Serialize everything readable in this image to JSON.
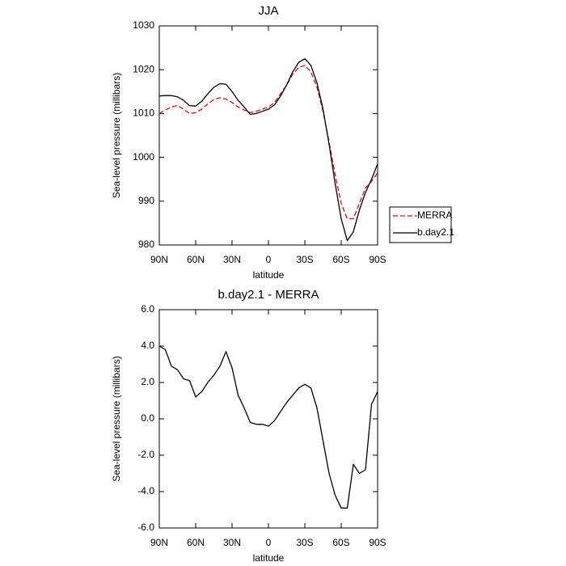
{
  "chart_data": [
    {
      "type": "line",
      "title": "JJA",
      "x_label": "latitude",
      "y_label": "Sea-level pressure (millibars)",
      "x": [
        90,
        85,
        80,
        75,
        70,
        65,
        60,
        55,
        50,
        45,
        40,
        35,
        30,
        25,
        20,
        15,
        10,
        5,
        0,
        -5,
        -10,
        -15,
        -20,
        -25,
        -30,
        -35,
        -40,
        -45,
        -50,
        -55,
        -60,
        -65,
        -70,
        -75,
        -80,
        -85,
        -90
      ],
      "xlim": [
        90,
        -90
      ],
      "xticks": [
        {
          "value": 90,
          "label": "90N"
        },
        {
          "value": 60,
          "label": "60N"
        },
        {
          "value": 30,
          "label": "30N"
        },
        0,
        {
          "value": -30,
          "label": "30S"
        },
        {
          "value": -60,
          "label": "60S"
        },
        {
          "value": -90,
          "label": "90S"
        }
      ],
      "ylim": [
        980,
        1030
      ],
      "yticks": [
        980,
        990,
        1000,
        1010,
        1020,
        1030
      ],
      "legend": "right",
      "series": [
        {
          "name": "MERRA",
          "color": "#ff0000",
          "dash": "dashed",
          "values": [
            1010,
            1010.8,
            1011.5,
            1011.8,
            1011,
            1010,
            1010.2,
            1011,
            1012.2,
            1013.2,
            1013.6,
            1013.3,
            1012.5,
            1011.5,
            1010.8,
            1010.2,
            1010.5,
            1011,
            1011.5,
            1012.5,
            1014.5,
            1016.5,
            1019,
            1020.5,
            1021,
            1019.5,
            1016,
            1010.5,
            1003.5,
            996,
            989.5,
            986,
            986,
            989.5,
            993,
            994.5,
            996.5
          ]
        },
        {
          "name": "b.day2.1",
          "color": "#000000",
          "dash": "solid",
          "values": [
            1014,
            1014.1,
            1014.1,
            1013.8,
            1013,
            1011.8,
            1011.7,
            1012.8,
            1014.5,
            1016,
            1016.8,
            1016.7,
            1015,
            1013,
            1011.5,
            1009.8,
            1010,
            1010.5,
            1011,
            1012,
            1014,
            1016.5,
            1019.5,
            1021.7,
            1022.5,
            1021,
            1017,
            1011,
            1003,
            994,
            986,
            981,
            983,
            988,
            992,
            995,
            998.5
          ]
        }
      ]
    },
    {
      "type": "line",
      "title": "b.day2.1 - MERRA",
      "x_label": "latitude",
      "y_label": "Sea-level pressure (millibars)",
      "x": [
        90,
        85,
        80,
        75,
        70,
        65,
        60,
        55,
        50,
        45,
        40,
        35,
        30,
        25,
        20,
        15,
        10,
        5,
        0,
        -5,
        -10,
        -15,
        -20,
        -25,
        -30,
        -35,
        -40,
        -45,
        -50,
        -55,
        -60,
        -65,
        -70,
        -75,
        -80,
        -85,
        -90
      ],
      "xlim": [
        90,
        -90
      ],
      "xticks": [
        {
          "value": 90,
          "label": "90N"
        },
        {
          "value": 60,
          "label": "60N"
        },
        {
          "value": 30,
          "label": "30N"
        },
        0,
        {
          "value": -30,
          "label": "30S"
        },
        {
          "value": -60,
          "label": "60S"
        },
        {
          "value": -90,
          "label": "90S"
        }
      ],
      "ylim": [
        -6,
        6
      ],
      "yticks": [
        {
          "value": -6,
          "label": "-6.0"
        },
        {
          "value": -4,
          "label": "-4.0"
        },
        {
          "value": -2,
          "label": "-2.0"
        },
        {
          "value": 0,
          "label": "0.0"
        },
        {
          "value": 2,
          "label": "2.0"
        },
        {
          "value": 4,
          "label": "4.0"
        },
        {
          "value": 6,
          "label": "6.0"
        }
      ],
      "series": [
        {
          "color": "#000000",
          "dash": "solid",
          "values": [
            4.0,
            3.8,
            2.9,
            2.7,
            2.2,
            2.1,
            1.2,
            1.5,
            2.0,
            2.4,
            2.9,
            3.7,
            2.8,
            1.3,
            0.6,
            -0.2,
            -0.3,
            -0.3,
            -0.4,
            -0.1,
            0.4,
            0.9,
            1.3,
            1.7,
            1.9,
            1.7,
            0.6,
            -1.2,
            -3.0,
            -4.2,
            -4.9,
            -4.9,
            -2.5,
            -3.0,
            -2.8,
            0.8,
            1.5
          ]
        }
      ]
    }
  ]
}
